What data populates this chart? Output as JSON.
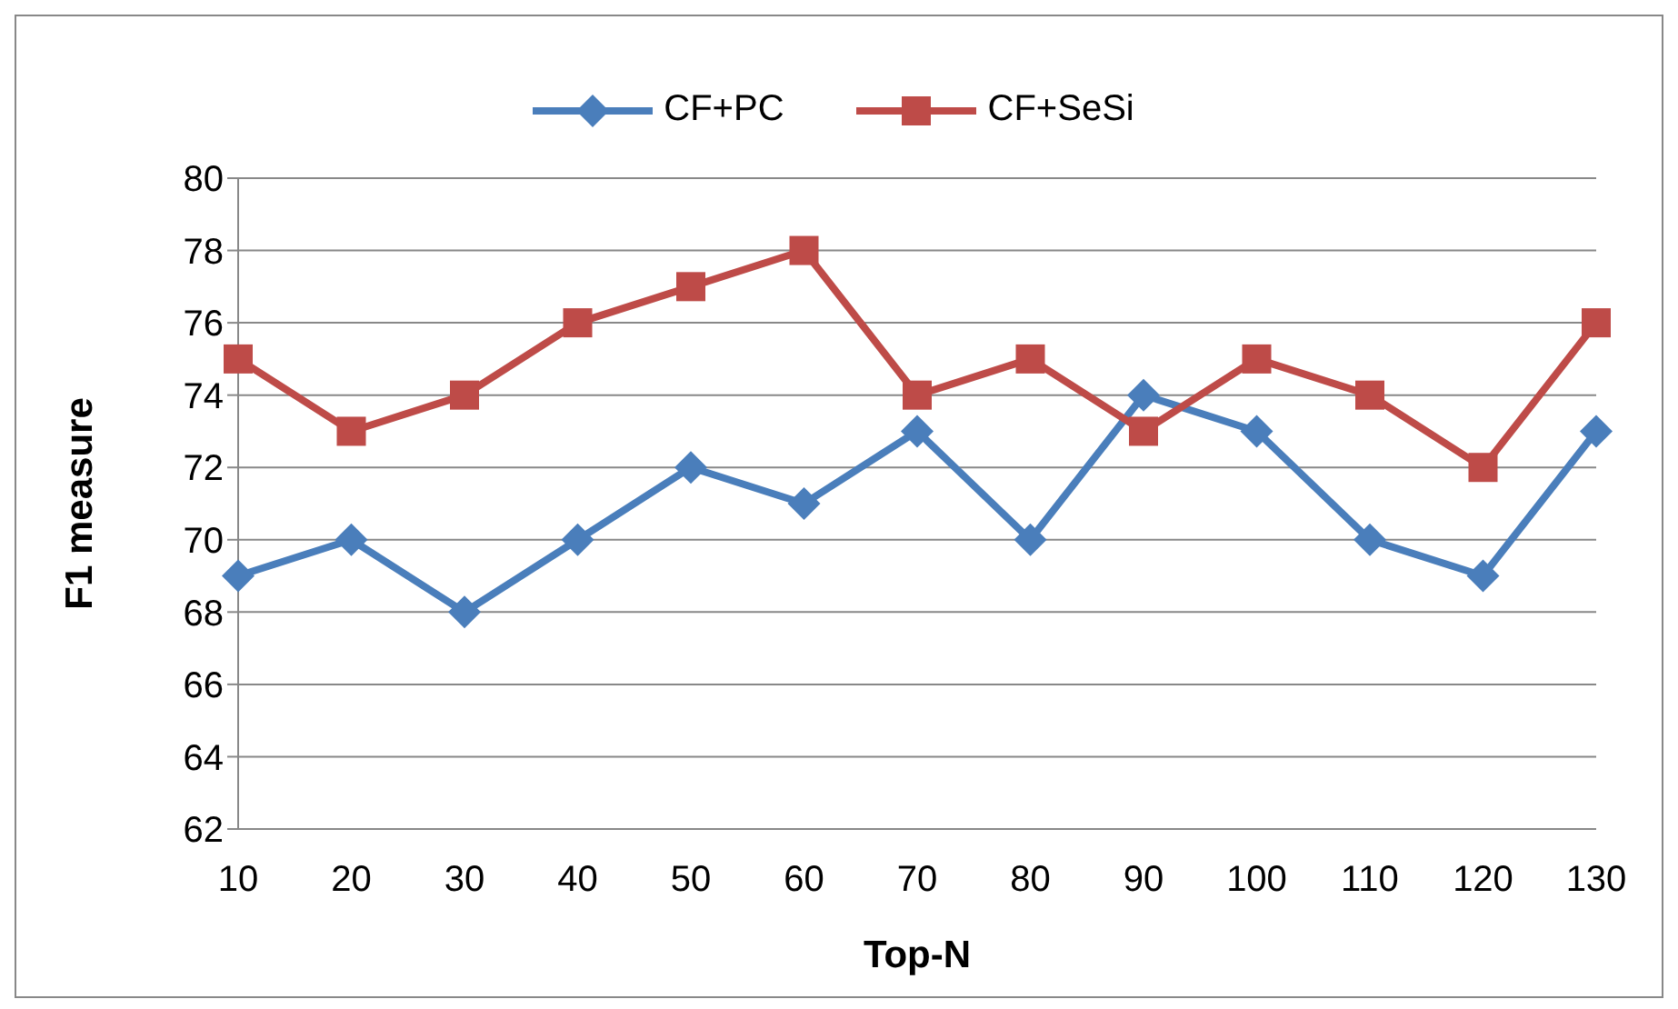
{
  "chart_data": {
    "type": "line",
    "xlabel": "Top-N",
    "ylabel": "F1 measure",
    "categories": [
      "10",
      "20",
      "30",
      "40",
      "50",
      "60",
      "70",
      "80",
      "90",
      "100",
      "110",
      "120",
      "130"
    ],
    "series": [
      {
        "name": "CF+PC",
        "color": "#4a7ebb",
        "marker": "diamond",
        "values": [
          69,
          70,
          68,
          70,
          72,
          71,
          73,
          70,
          74,
          73,
          70,
          69,
          73
        ]
      },
      {
        "name": "CF+SeSi",
        "color": "#be4b48",
        "marker": "square",
        "values": [
          75,
          73,
          74,
          76,
          77,
          78,
          74,
          75,
          73,
          75,
          74,
          72,
          76
        ]
      }
    ],
    "ylim": [
      62,
      80
    ],
    "yticks": [
      62,
      64,
      66,
      68,
      70,
      72,
      74,
      76,
      78,
      80
    ],
    "grid": "y",
    "legend": "top",
    "line_style": "solid"
  }
}
